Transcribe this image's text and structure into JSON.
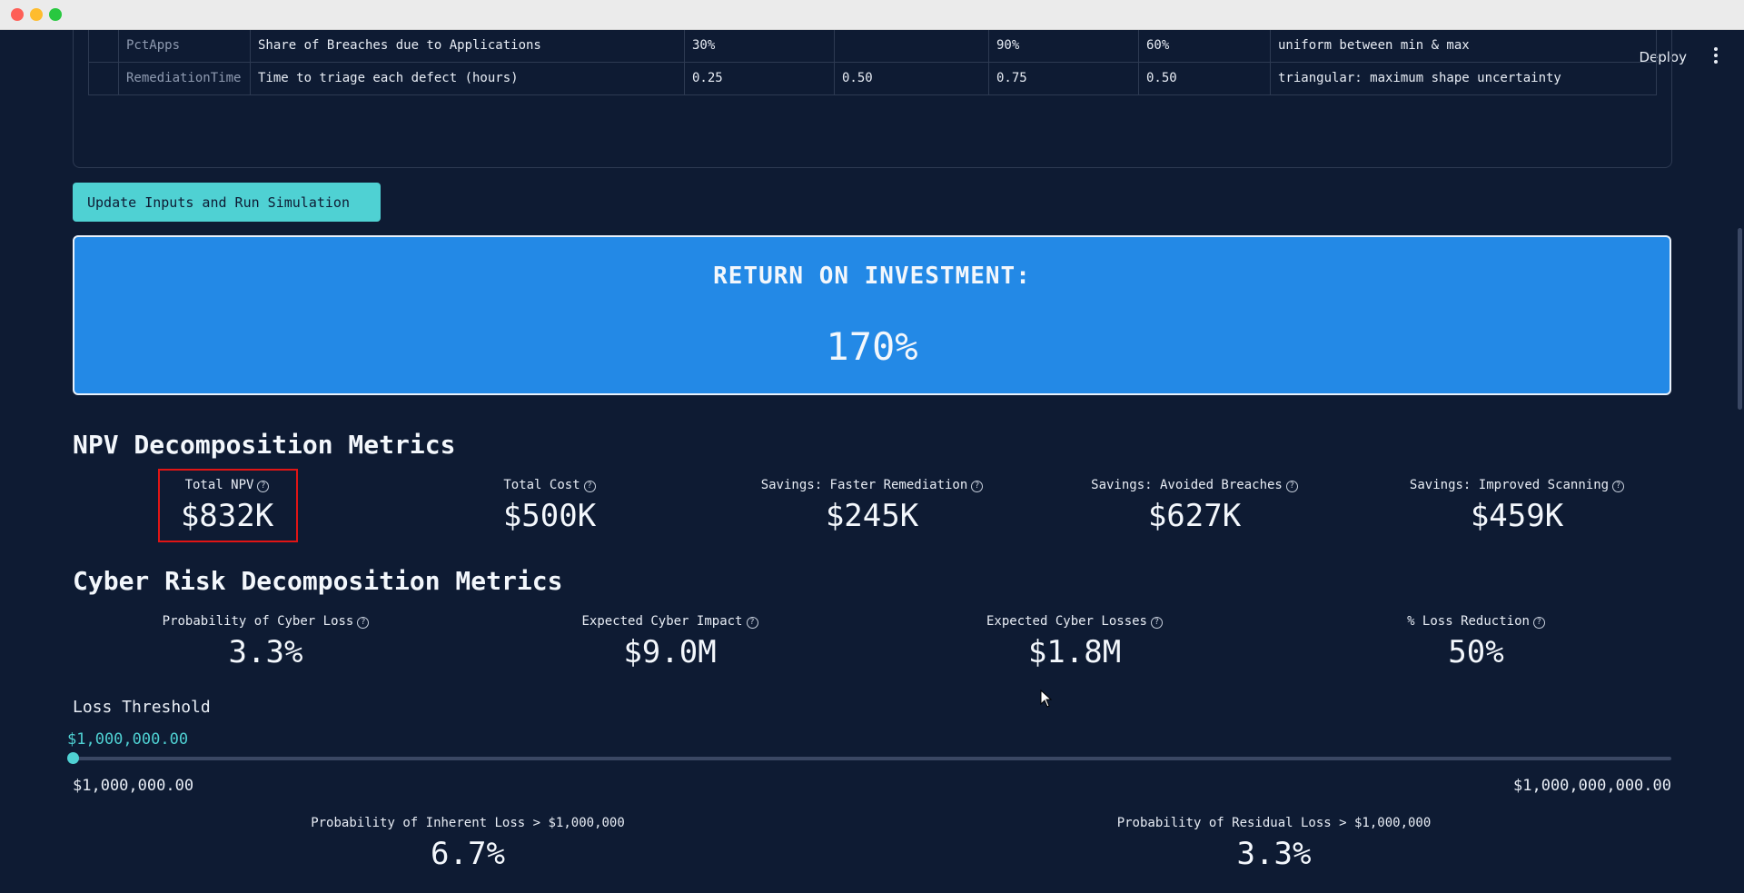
{
  "header": {
    "deploy_label": "Deploy"
  },
  "inputs_table": {
    "rows": [
      {
        "name": "PctApps",
        "description": "Share of Breaches due to Applications",
        "min": "30%",
        "mode": "",
        "max": "90%",
        "expected": "60%",
        "distribution": "uniform between min & max"
      },
      {
        "name": "RemediationTime",
        "description": "Time to triage each defect (hours)",
        "min": "0.25",
        "mode": "0.50",
        "max": "0.75",
        "expected": "0.50",
        "distribution": "triangular: maximum shape uncertainty"
      }
    ]
  },
  "run_button": {
    "label": "Update Inputs and Run Simulation"
  },
  "roi": {
    "label": "RETURN ON INVESTMENT:",
    "value": "170%"
  },
  "npv_section": {
    "title": "NPV Decomposition Metrics",
    "metrics": [
      {
        "label": "Total NPV",
        "value": "$832K"
      },
      {
        "label": "Total Cost",
        "value": "$500K"
      },
      {
        "label": "Savings: Faster Remediation",
        "value": "$245K"
      },
      {
        "label": "Savings: Avoided Breaches",
        "value": "$627K"
      },
      {
        "label": "Savings: Improved Scanning",
        "value": "$459K"
      }
    ]
  },
  "risk_section": {
    "title": "Cyber Risk Decomposition Metrics",
    "metrics": [
      {
        "label": "Probability of Cyber Loss",
        "value": "3.3%"
      },
      {
        "label": "Expected Cyber Impact",
        "value": "$9.0M"
      },
      {
        "label": "Expected Cyber Losses",
        "value": "$1.8M"
      },
      {
        "label": "% Loss Reduction",
        "value": "50%"
      }
    ]
  },
  "loss_threshold": {
    "title": "Loss Threshold",
    "current": "$1,000,000.00",
    "min_label": "$1,000,000.00",
    "max_label": "$1,000,000,000.00",
    "position_fraction": 0
  },
  "probability_metrics": [
    {
      "label": "Probability of Inherent Loss > $1,000,000",
      "value": "6.7%"
    },
    {
      "label": "Probability of Residual Loss > $1,000,000",
      "value": "3.3%"
    }
  ],
  "colors": {
    "accent": "#4fd1d3",
    "roi_bg": "#2389e6",
    "background": "#0e1b33",
    "highlight": "#e01515"
  }
}
